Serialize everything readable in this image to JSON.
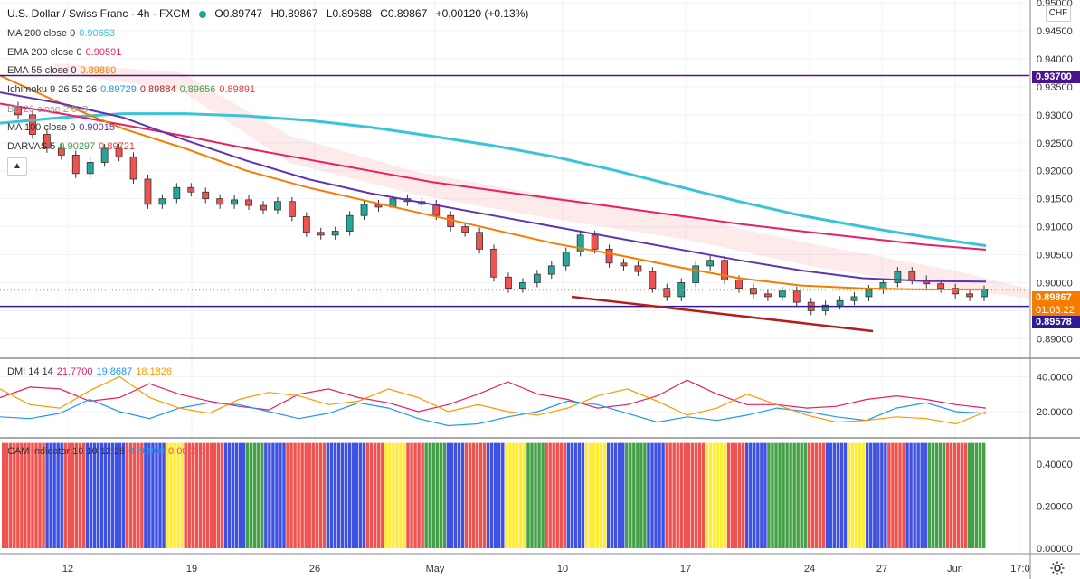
{
  "header": {
    "symbol": "U.S. Dollar / Swiss Franc · 4h · FXCM",
    "open": "O0.89747",
    "high": "H0.89867",
    "low": "L0.89688",
    "close": "C0.89867",
    "change": "+0.00120 (+0.13%)",
    "currency": "CHF"
  },
  "legends": {
    "ma200": {
      "label": "MA 200 close 0",
      "value": "0.90653",
      "color": "#3bc3d8"
    },
    "ema200": {
      "label": "EMA 200 close 0",
      "value": "0.90591",
      "color": "#e91e63"
    },
    "ema55": {
      "label": "EMA 55 close 0",
      "value": "0.89880",
      "color": "#f57c00"
    },
    "ichimoku": {
      "label": "Ichimoku 9 26 52 26",
      "v1": "0.89729",
      "v2": "0.89884",
      "v3": "0.89656",
      "v4": "0.89891"
    },
    "bb": {
      "label": "BB 20 close 2 0"
    },
    "ma100": {
      "label": "MA 100 close 0",
      "value": "0.90015",
      "color": "#5e35b1"
    },
    "darvas": {
      "label": "DARVAS 5",
      "v1": "0.90297",
      "v2": "0.89721"
    },
    "dmi": {
      "label": "DMI 14 14",
      "v1": "21.7700",
      "v2": "19.8687",
      "v3": "18.1826"
    },
    "cam": {
      "label": "CAM indicator 10 10 12 26",
      "v1": "0.50000",
      "v2": "0.00000"
    }
  },
  "price_tags": {
    "resistance": "0.93700",
    "current": "0.89867",
    "countdown": "01:03:22",
    "support": "0.89578"
  },
  "colors": {
    "up": "#26a69a",
    "down": "#ef5350",
    "resistance_line": "#4a148c",
    "trend_line": "#b71c1c",
    "current_tag": "#f57c00",
    "support_tag": "#311b92",
    "resistance_tag": "#4a148c"
  },
  "chart_data": {
    "type": "line",
    "main_panel": {
      "y_ticks": [
        "0.95000",
        "0.94500",
        "0.94000",
        "0.93500",
        "0.93000",
        "0.92500",
        "0.92000",
        "0.91500",
        "0.91000",
        "0.90500",
        "0.90000",
        "0.89500",
        "0.89000"
      ],
      "ylim": [
        0.8865,
        0.9505
      ],
      "horizontal_lines": [
        0.937,
        0.89578
      ],
      "series": [
        {
          "name": "MA 200",
          "color": "#3bc3d8",
          "values": [
            0.9285,
            0.9295,
            0.9302,
            0.9302,
            0.9298,
            0.929,
            0.9278,
            0.9262,
            0.9245,
            0.9225,
            0.92,
            0.9172,
            0.9145,
            0.912,
            0.91,
            0.9082,
            0.9066
          ]
        },
        {
          "name": "EMA 200",
          "color": "#e91e63",
          "values": [
            0.932,
            0.9302,
            0.9282,
            0.9262,
            0.924,
            0.922,
            0.92,
            0.918,
            0.9165,
            0.915,
            0.9135,
            0.912,
            0.9105,
            0.9092,
            0.908,
            0.9068,
            0.9059
          ]
        },
        {
          "name": "EMA 55",
          "color": "#f57c00",
          "values": [
            0.937,
            0.932,
            0.9275,
            0.924,
            0.92,
            0.917,
            0.9145,
            0.912,
            0.9095,
            0.907,
            0.905,
            0.9028,
            0.9008,
            0.8995,
            0.899,
            0.8988,
            0.8988
          ]
        },
        {
          "name": "MA 100",
          "color": "#5e35b1",
          "values": [
            0.934,
            0.932,
            0.9295,
            0.9255,
            0.9218,
            0.9185,
            0.916,
            0.914,
            0.912,
            0.91,
            0.908,
            0.906,
            0.904,
            0.9022,
            0.9008,
            0.9003,
            0.9002
          ]
        }
      ],
      "candles": [
        0.93,
        0.9265,
        0.924,
        0.9228,
        0.9195,
        0.9215,
        0.924,
        0.9225,
        0.9185,
        0.914,
        0.915,
        0.917,
        0.9162,
        0.915,
        0.914,
        0.9148,
        0.9138,
        0.913,
        0.9145,
        0.9118,
        0.909,
        0.9085,
        0.9092,
        0.912,
        0.914,
        0.9135,
        0.915,
        0.9145,
        0.914,
        0.912,
        0.91,
        0.909,
        0.906,
        0.901,
        0.899,
        0.9,
        0.9015,
        0.903,
        0.9055,
        0.9085,
        0.906,
        0.9035,
        0.903,
        0.902,
        0.899,
        0.8975,
        0.9,
        0.903,
        0.904,
        0.9005,
        0.899,
        0.898,
        0.8975,
        0.8985,
        0.8965,
        0.895,
        0.896,
        0.8968,
        0.8975,
        0.8988,
        0.9,
        0.902,
        0.9005,
        0.8998,
        0.899,
        0.898,
        0.8975,
        0.8987
      ]
    },
    "x_ticks": [
      "12",
      "19",
      "26",
      "May",
      "10",
      "17",
      "24",
      "27",
      "Jun",
      "17:0"
    ],
    "dmi_panel": {
      "y_ticks": [
        "40.0000",
        "20.0000"
      ],
      "ylim": [
        5,
        50
      ],
      "series": [
        {
          "name": "+DI",
          "color": "#e91e63",
          "values": [
            28,
            34,
            33,
            26,
            28,
            36,
            30,
            26,
            23,
            21,
            30,
            33,
            28,
            25,
            20,
            24,
            30,
            37,
            30,
            27,
            22,
            24,
            29,
            38,
            30,
            24,
            24,
            22,
            23,
            27,
            29,
            27,
            24,
            22
          ]
        },
        {
          "name": "-DI",
          "color": "#2196f3",
          "values": [
            17,
            16,
            19,
            27,
            20,
            16,
            22,
            25,
            24,
            20,
            16,
            19,
            25,
            22,
            16,
            12,
            13,
            17,
            20,
            26,
            24,
            19,
            14,
            17,
            15,
            18,
            22,
            20,
            17,
            15,
            22,
            25,
            20,
            19
          ]
        },
        {
          "name": "ADX",
          "color": "#ff9800",
          "values": [
            33,
            24,
            22,
            32,
            40,
            28,
            22,
            19,
            27,
            31,
            29,
            24,
            26,
            33,
            28,
            20,
            24,
            20,
            18,
            22,
            29,
            33,
            26,
            18,
            22,
            30,
            24,
            18,
            14,
            15,
            17,
            16,
            13,
            20
          ]
        }
      ]
    },
    "cam_panel": {
      "y_ticks": [
        "0.40000",
        "0.20000",
        "0.00000"
      ],
      "ylim": [
        0,
        0.52
      ],
      "bar_value": 0.5,
      "color_sequence": [
        "red",
        "red",
        "blue",
        "red",
        "blue",
        "blue",
        "red",
        "blue",
        "yellow",
        "red",
        "red",
        "blue",
        "green",
        "blue",
        "red",
        "red",
        "blue",
        "blue",
        "red",
        "yellow",
        "red",
        "green",
        "blue",
        "red",
        "blue",
        "yellow",
        "green",
        "red",
        "blue",
        "yellow",
        "blue",
        "green",
        "blue",
        "red",
        "red",
        "yellow",
        "red",
        "blue",
        "green",
        "green",
        "red",
        "blue",
        "yellow",
        "blue",
        "red",
        "blue",
        "green",
        "red",
        "green"
      ]
    }
  }
}
